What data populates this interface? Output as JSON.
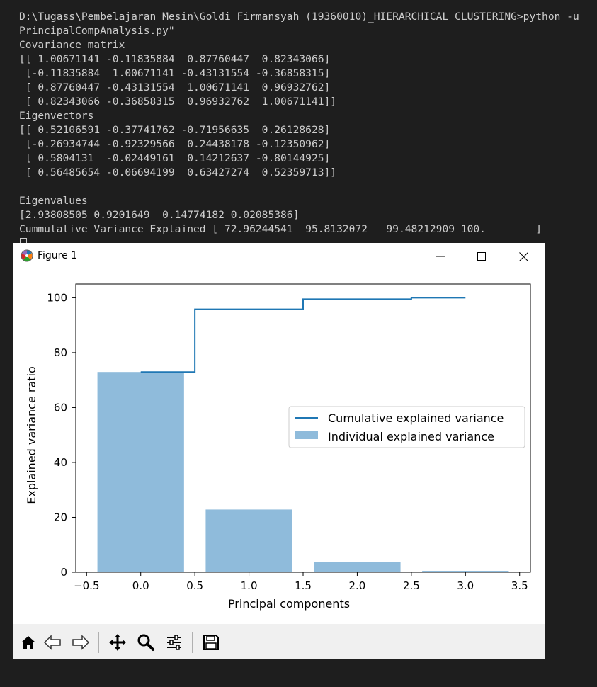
{
  "terminal": {
    "lines": [
      "D:\\Tugass\\Pembelajaran Mesin\\Goldi Firmansyah (19360010)_HIERARCHICAL CLUSTERING>python -u",
      "PrincipalCompAnalysis.py\"",
      "Covariance matrix",
      "[[ 1.00671141 -0.11835884  0.87760447  0.82343066]",
      " [-0.11835884  1.00671141 -0.43131554 -0.36858315]",
      " [ 0.87760447 -0.43131554  1.00671141  0.96932762]",
      " [ 0.82343066 -0.36858315  0.96932762  1.00671141]]",
      "Eigenvectors",
      "[[ 0.52106591 -0.37741762 -0.71956635  0.26128628]",
      " [-0.26934744 -0.92329566  0.24438178 -0.12350962]",
      " [ 0.5804131  -0.02449161  0.14212637 -0.80144925]",
      " [ 0.56485654 -0.06694199  0.63427274  0.52359713]]",
      "",
      "Eigenvalues",
      "[2.93808505 0.9201649  0.14774182 0.02085386]",
      "Cummulative Variance Explained [ 72.96244541  95.8132072   99.48212909 100.        ]"
    ]
  },
  "figure_window": {
    "title": "Figure 1",
    "title_icon": "matplotlib-logo-icon",
    "controls": [
      "minimize-icon",
      "maximize-icon",
      "close-icon"
    ]
  },
  "toolbar": {
    "buttons": [
      "home-icon",
      "back-arrow-icon",
      "forward-arrow-icon",
      "pan-move-icon",
      "zoom-magnifier-icon",
      "configure-subplots-icon",
      "save-floppy-icon"
    ]
  },
  "chart_data": {
    "type": "bar",
    "title": "",
    "xlabel": "Principal components",
    "ylabel": "Explained variance ratio",
    "xlim": [
      -0.6,
      3.6
    ],
    "ylim": [
      0,
      105
    ],
    "xticks": [
      "−0.5",
      "0.0",
      "0.5",
      "1.0",
      "1.5",
      "2.0",
      "2.5",
      "3.0",
      "3.5"
    ],
    "yticks": [
      "0",
      "20",
      "40",
      "60",
      "80",
      "100"
    ],
    "grid": false,
    "legend_position": "center-right",
    "series": [
      {
        "name": "Individual explained variance",
        "kind": "bar",
        "color": "#8fbbdb",
        "x": [
          0,
          1,
          2,
          3
        ],
        "values": [
          72.96,
          22.85,
          3.67,
          0.52
        ]
      },
      {
        "name": "Cumulative explained variance",
        "kind": "step",
        "color": "#1f77b4",
        "x": [
          0,
          1,
          2,
          3
        ],
        "values": [
          72.96,
          95.81,
          99.48,
          100.0
        ]
      }
    ]
  }
}
